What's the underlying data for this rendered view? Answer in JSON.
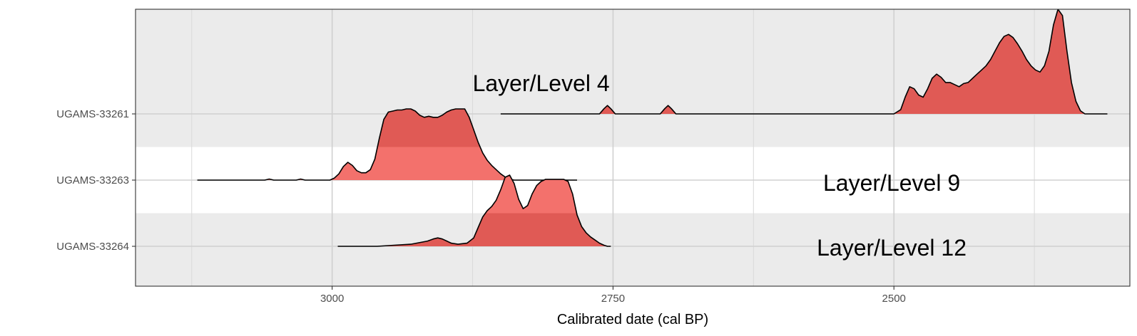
{
  "chart_data": {
    "type": "ridgeline-density",
    "title": "",
    "xlabel": "Calibrated date (cal BP)",
    "ylabel": "",
    "x_reversed": true,
    "xlim": [
      3175,
      2290
    ],
    "x_ticks": [
      3000,
      2750,
      2500
    ],
    "x_minor_ticks": [
      3125,
      2875,
      2625,
      2375
    ],
    "grid": true,
    "fill_color": "#e05a55",
    "fill_color_light": "#f3716c",
    "band_color_dark": "#ebebeb",
    "band_color_light": "#ffffff",
    "series": [
      {
        "name": "UGAMS-33261",
        "points": [
          [
            2850,
            0
          ],
          [
            2790,
            0
          ],
          [
            2762,
            0
          ],
          [
            2758,
            0.05
          ],
          [
            2755,
            0.08
          ],
          [
            2752,
            0.05
          ],
          [
            2748,
            0
          ],
          [
            2708,
            0
          ],
          [
            2704,
            0.05
          ],
          [
            2701,
            0.08
          ],
          [
            2698,
            0.05
          ],
          [
            2694,
            0
          ],
          [
            2500,
            0
          ],
          [
            2494,
            0.04
          ],
          [
            2490,
            0.16
          ],
          [
            2486,
            0.26
          ],
          [
            2482,
            0.24
          ],
          [
            2478,
            0.18
          ],
          [
            2474,
            0.16
          ],
          [
            2470,
            0.24
          ],
          [
            2466,
            0.34
          ],
          [
            2462,
            0.38
          ],
          [
            2458,
            0.35
          ],
          [
            2454,
            0.3
          ],
          [
            2450,
            0.3
          ],
          [
            2446,
            0.28
          ],
          [
            2442,
            0.26
          ],
          [
            2438,
            0.29
          ],
          [
            2434,
            0.3
          ],
          [
            2430,
            0.34
          ],
          [
            2426,
            0.38
          ],
          [
            2422,
            0.42
          ],
          [
            2418,
            0.46
          ],
          [
            2414,
            0.52
          ],
          [
            2410,
            0.6
          ],
          [
            2406,
            0.68
          ],
          [
            2402,
            0.74
          ],
          [
            2398,
            0.76
          ],
          [
            2394,
            0.73
          ],
          [
            2390,
            0.67
          ],
          [
            2386,
            0.6
          ],
          [
            2382,
            0.52
          ],
          [
            2378,
            0.46
          ],
          [
            2374,
            0.42
          ],
          [
            2370,
            0.4
          ],
          [
            2366,
            0.46
          ],
          [
            2362,
            0.6
          ],
          [
            2358,
            0.85
          ],
          [
            2354,
            1.0
          ],
          [
            2350,
            0.94
          ],
          [
            2346,
            0.6
          ],
          [
            2342,
            0.3
          ],
          [
            2338,
            0.12
          ],
          [
            2334,
            0.03
          ],
          [
            2330,
            0.0
          ],
          [
            2310,
            0
          ]
        ]
      },
      {
        "name": "UGAMS-33263",
        "points": [
          [
            3120,
            0
          ],
          [
            3060,
            0
          ],
          [
            3056,
            0.01
          ],
          [
            3052,
            0
          ],
          [
            3032,
            0
          ],
          [
            3028,
            0.01
          ],
          [
            3024,
            0
          ],
          [
            3002,
            0
          ],
          [
            2998,
            0.02
          ],
          [
            2994,
            0.06
          ],
          [
            2990,
            0.13
          ],
          [
            2986,
            0.17
          ],
          [
            2982,
            0.14
          ],
          [
            2978,
            0.09
          ],
          [
            2974,
            0.07
          ],
          [
            2970,
            0.07
          ],
          [
            2966,
            0.1
          ],
          [
            2962,
            0.2
          ],
          [
            2958,
            0.4
          ],
          [
            2954,
            0.58
          ],
          [
            2950,
            0.65
          ],
          [
            2946,
            0.66
          ],
          [
            2942,
            0.67
          ],
          [
            2938,
            0.67
          ],
          [
            2934,
            0.68
          ],
          [
            2930,
            0.68
          ],
          [
            2926,
            0.66
          ],
          [
            2922,
            0.62
          ],
          [
            2918,
            0.6
          ],
          [
            2914,
            0.61
          ],
          [
            2910,
            0.6
          ],
          [
            2906,
            0.6
          ],
          [
            2902,
            0.62
          ],
          [
            2898,
            0.65
          ],
          [
            2894,
            0.67
          ],
          [
            2890,
            0.68
          ],
          [
            2886,
            0.68
          ],
          [
            2882,
            0.68
          ],
          [
            2878,
            0.6
          ],
          [
            2874,
            0.48
          ],
          [
            2870,
            0.36
          ],
          [
            2866,
            0.26
          ],
          [
            2862,
            0.19
          ],
          [
            2858,
            0.14
          ],
          [
            2854,
            0.1
          ],
          [
            2850,
            0.06
          ],
          [
            2846,
            0.03
          ],
          [
            2842,
            0.01
          ],
          [
            2838,
            0.0
          ],
          [
            2782,
            0
          ]
        ]
      },
      {
        "name": "UGAMS-33264",
        "points": [
          [
            2995,
            0
          ],
          [
            2960,
            0
          ],
          [
            2945,
            0.01
          ],
          [
            2930,
            0.02
          ],
          [
            2920,
            0.04
          ],
          [
            2915,
            0.05
          ],
          [
            2910,
            0.07
          ],
          [
            2906,
            0.08
          ],
          [
            2902,
            0.07
          ],
          [
            2898,
            0.05
          ],
          [
            2894,
            0.03
          ],
          [
            2888,
            0.02
          ],
          [
            2880,
            0.03
          ],
          [
            2874,
            0.08
          ],
          [
            2870,
            0.18
          ],
          [
            2866,
            0.28
          ],
          [
            2862,
            0.34
          ],
          [
            2858,
            0.38
          ],
          [
            2854,
            0.44
          ],
          [
            2850,
            0.54
          ],
          [
            2846,
            0.66
          ],
          [
            2842,
            0.68
          ],
          [
            2838,
            0.6
          ],
          [
            2834,
            0.45
          ],
          [
            2830,
            0.36
          ],
          [
            2826,
            0.39
          ],
          [
            2822,
            0.5
          ],
          [
            2818,
            0.58
          ],
          [
            2814,
            0.62
          ],
          [
            2810,
            0.64
          ],
          [
            2806,
            0.64
          ],
          [
            2802,
            0.64
          ],
          [
            2798,
            0.64
          ],
          [
            2794,
            0.64
          ],
          [
            2790,
            0.62
          ],
          [
            2786,
            0.5
          ],
          [
            2782,
            0.3
          ],
          [
            2778,
            0.19
          ],
          [
            2774,
            0.13
          ],
          [
            2770,
            0.09
          ],
          [
            2766,
            0.06
          ],
          [
            2762,
            0.03
          ],
          [
            2758,
            0.01
          ],
          [
            2755,
            0.0
          ],
          [
            2752,
            0
          ]
        ]
      }
    ],
    "annotations": [
      {
        "text": "Layer/Level 4",
        "x": 2814,
        "y": "UGAMS-33261"
      },
      {
        "text": "Layer/Level 9",
        "x": 2502,
        "y": "UGAMS-33263"
      },
      {
        "text": "Layer/Level 12",
        "x": 2502,
        "y": "UGAMS-33264"
      }
    ]
  }
}
